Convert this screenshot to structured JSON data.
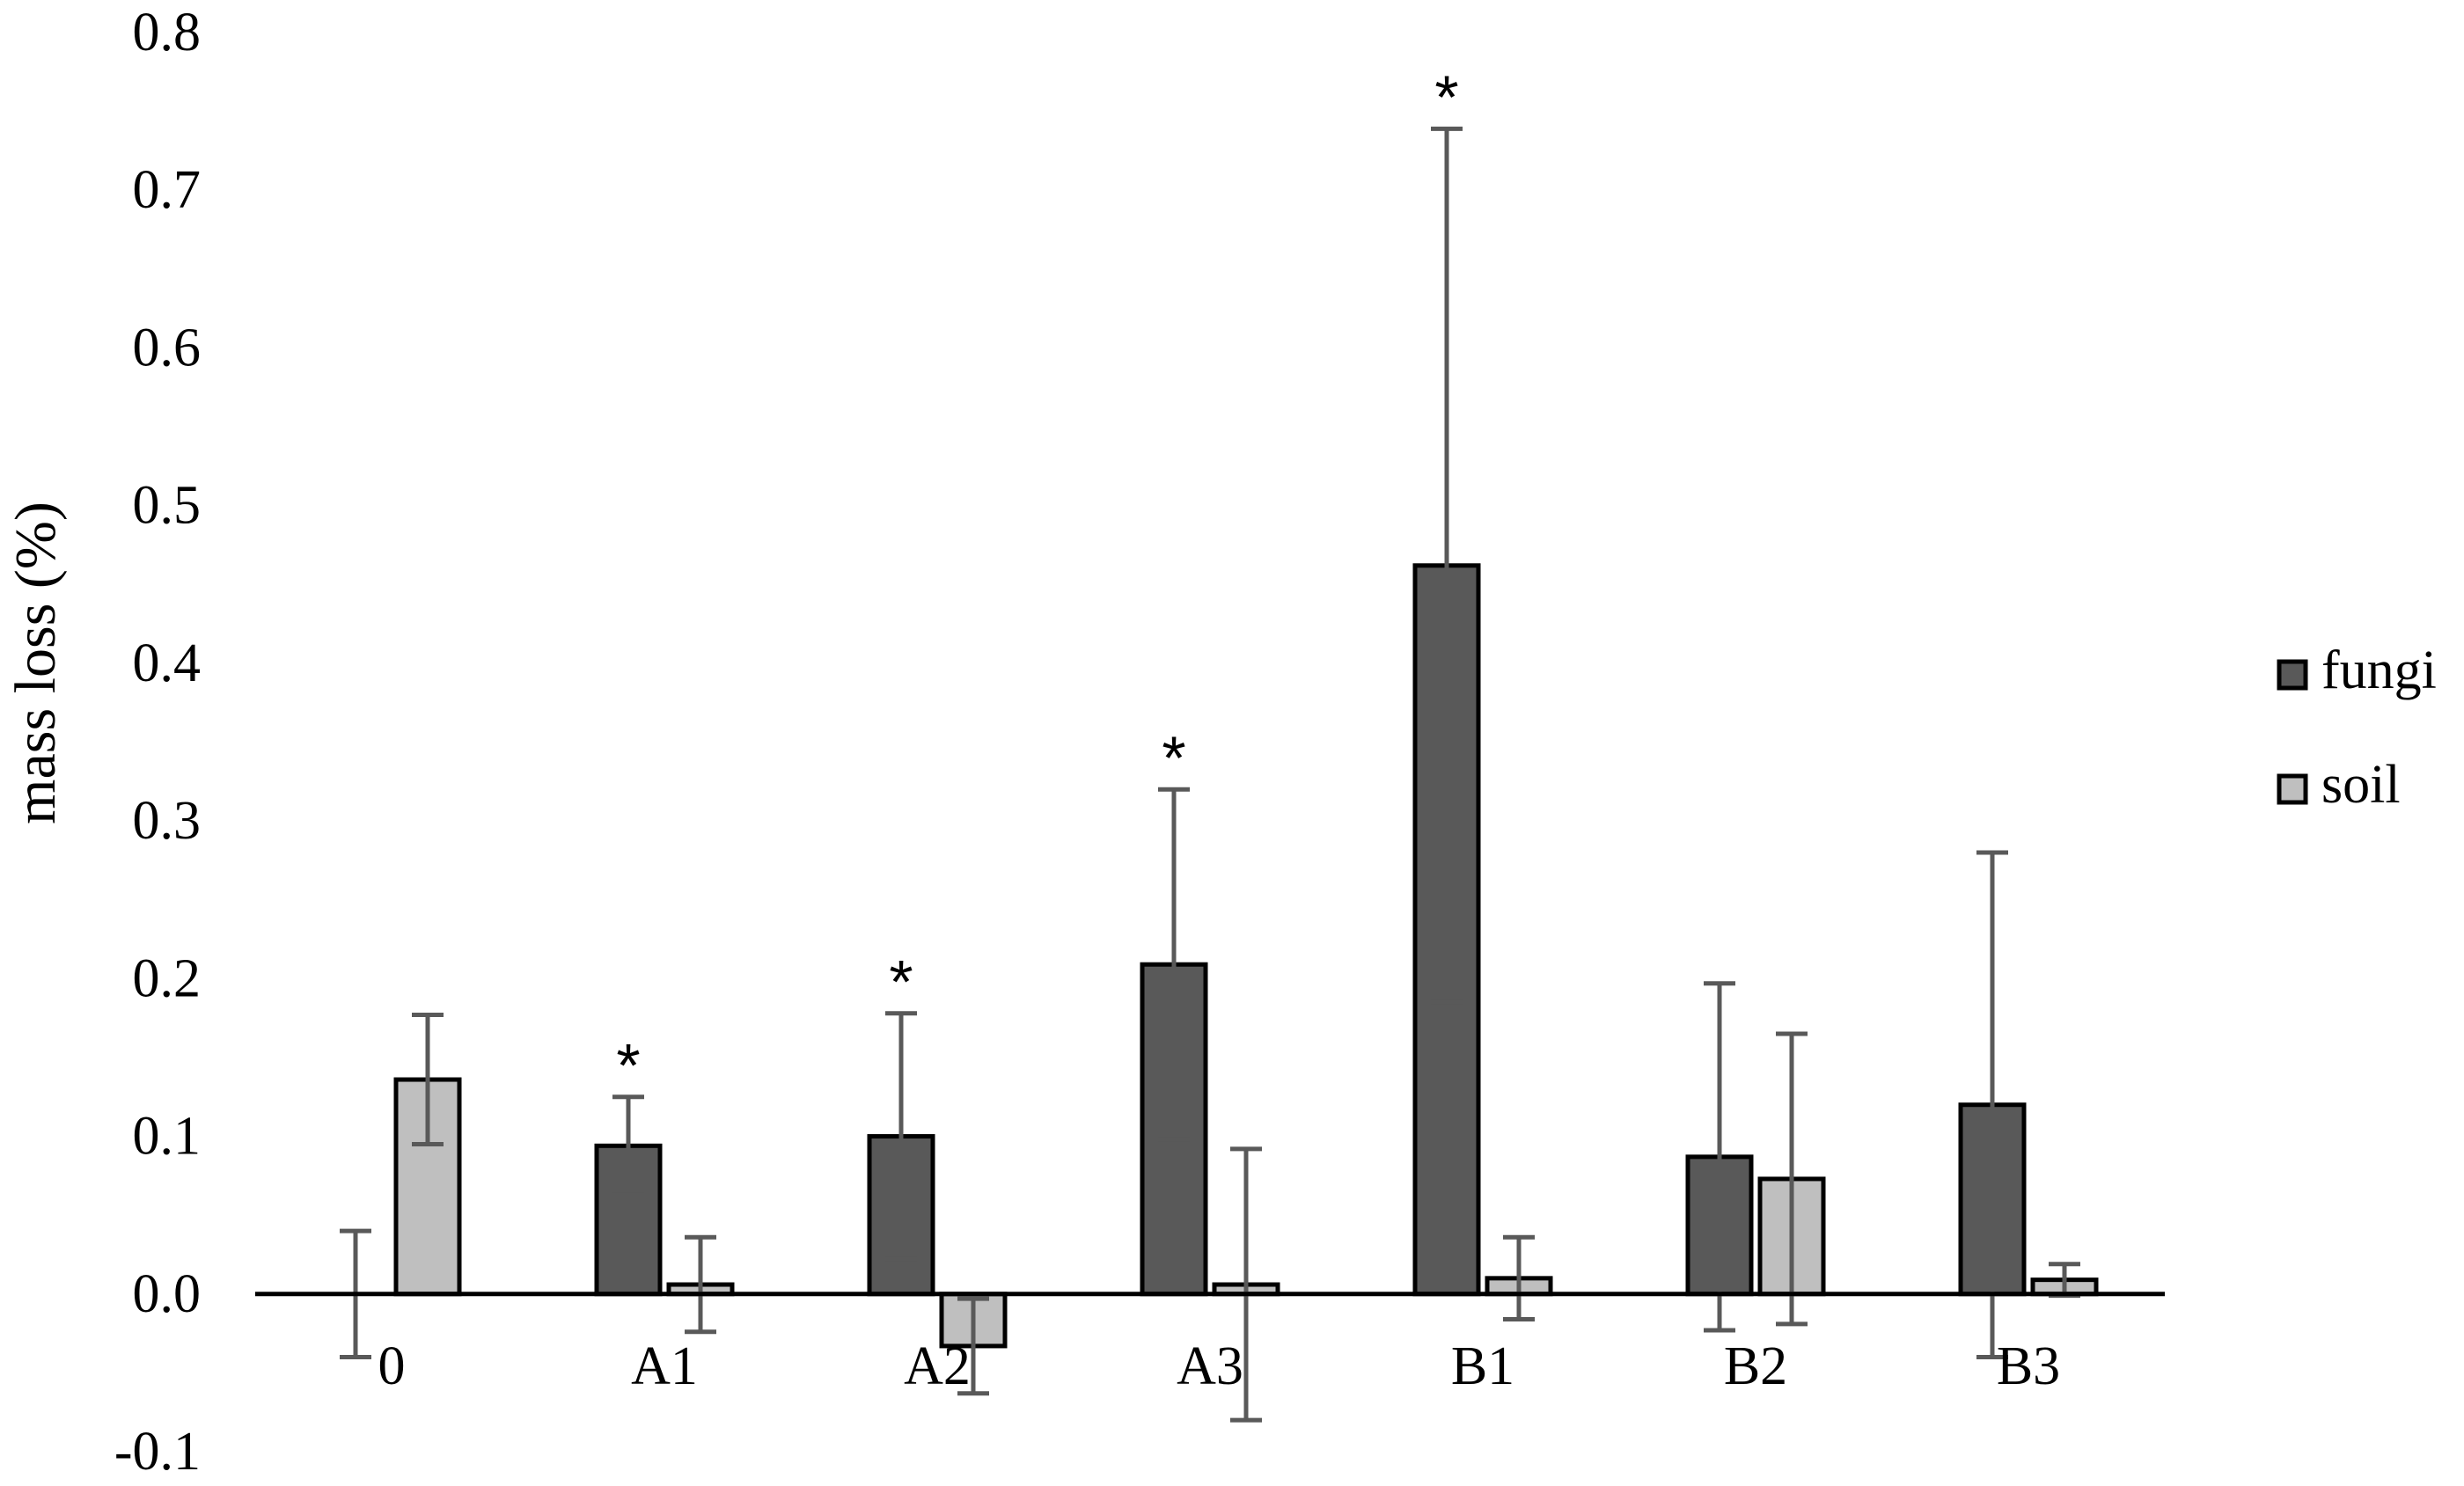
{
  "chart_data": {
    "type": "bar",
    "categories": [
      "0",
      "A1",
      "A2",
      "A3",
      "B1",
      "B2",
      "B3"
    ],
    "series": [
      {
        "name": "fungi",
        "color": "#595959",
        "values": [
          0.0,
          0.094,
          0.1,
          0.209,
          0.462,
          0.087,
          0.12
        ],
        "error": [
          0.04,
          0.031,
          0.078,
          0.111,
          0.277,
          0.11,
          0.16
        ],
        "significance": [
          "",
          "*",
          "*",
          "*",
          "*",
          "",
          ""
        ]
      },
      {
        "name": "soil",
        "color": "#bfbfbf",
        "values": [
          0.136,
          0.006,
          -0.033,
          0.006,
          0.01,
          0.073,
          0.009
        ],
        "error": [
          0.041,
          0.03,
          0.03,
          0.086,
          0.026,
          0.092,
          0.01
        ]
      }
    ],
    "ylabel": "mass loss (%)",
    "xlabel": "",
    "title": "",
    "ylim": [
      -0.1,
      0.8
    ],
    "yticks": [
      "-0.1",
      "0.0",
      "0.1",
      "0.2",
      "0.3",
      "0.4",
      "0.5",
      "0.6",
      "0.7",
      "0.8"
    ],
    "grid": false,
    "legend_position": "right"
  }
}
